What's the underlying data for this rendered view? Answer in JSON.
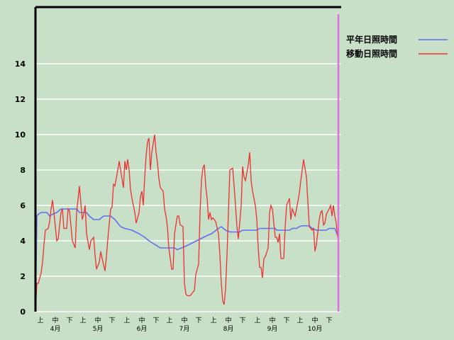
{
  "chart_data": {
    "type": "line",
    "title": "",
    "xlabel": "",
    "ylabel": "",
    "ylim": [
      0,
      17.2
    ],
    "yticks": [
      0,
      2,
      4,
      6,
      8,
      10,
      12,
      14
    ],
    "grid": true,
    "legend_position": "top-right",
    "x_range": [
      "4/1",
      "10/31"
    ],
    "x_period_labels": [
      "上",
      "中",
      "下"
    ],
    "x_month_labels": [
      "4月",
      "5月",
      "6月",
      "7月",
      "8月",
      "9月",
      "10月"
    ],
    "colors": {
      "background": "#c8dfc8",
      "grid": "#eef5ee",
      "marker_line": "#e070e0"
    },
    "series": [
      {
        "name": "平年日照時間",
        "color": "#6070f0",
        "points": [
          [
            "4/1",
            0
          ],
          [
            "4/2",
            5.4
          ],
          [
            "4/3",
            5.5
          ],
          [
            "4/5",
            5.6
          ],
          [
            "4/9",
            5.6
          ],
          [
            "4/11",
            5.4
          ],
          [
            "4/13",
            5.5
          ],
          [
            "4/16",
            5.6
          ],
          [
            "4/19",
            5.8
          ],
          [
            "4/30",
            5.8
          ],
          [
            "5/2",
            5.6
          ],
          [
            "5/7",
            5.6
          ],
          [
            "5/9",
            5.4
          ],
          [
            "5/12",
            5.2
          ],
          [
            "5/16",
            5.2
          ],
          [
            "5/19",
            5.4
          ],
          [
            "5/24",
            5.4
          ],
          [
            "5/27",
            5.2
          ],
          [
            "5/31",
            4.8
          ],
          [
            "6/3",
            4.7
          ],
          [
            "6/8",
            4.6
          ],
          [
            "6/13",
            4.4
          ],
          [
            "6/17",
            4.2
          ],
          [
            "6/20",
            4.0
          ],
          [
            "6/24",
            3.8
          ],
          [
            "6/28",
            3.6
          ],
          [
            "7/8",
            3.6
          ],
          [
            "7/10",
            3.5
          ],
          [
            "7/13",
            3.6
          ],
          [
            "7/16",
            3.7
          ],
          [
            "7/21",
            3.9
          ],
          [
            "7/26",
            4.1
          ],
          [
            "7/31",
            4.3
          ],
          [
            "8/3",
            4.4
          ],
          [
            "8/8",
            4.7
          ],
          [
            "8/10",
            4.8
          ],
          [
            "8/13",
            4.6
          ],
          [
            "8/16",
            4.5
          ],
          [
            "8/23",
            4.5
          ],
          [
            "8/25",
            4.6
          ],
          [
            "9/4",
            4.6
          ],
          [
            "9/6",
            4.7
          ],
          [
            "9/17",
            4.7
          ],
          [
            "9/18",
            4.6
          ],
          [
            "9/27",
            4.6
          ],
          [
            "9/29",
            4.7
          ],
          [
            "10/2",
            4.7
          ],
          [
            "10/4",
            4.8
          ],
          [
            "10/6",
            4.85
          ],
          [
            "10/11",
            4.85
          ],
          [
            "10/13",
            4.7
          ],
          [
            "10/16",
            4.6
          ],
          [
            "10/23",
            4.6
          ],
          [
            "10/25",
            4.7
          ],
          [
            "10/29",
            4.7
          ],
          [
            "10/31",
            4.3
          ]
        ]
      },
      {
        "name": "移動日照時間",
        "color": "#f03030",
        "points": [
          [
            "4/1",
            0
          ],
          [
            "4/2",
            1.6
          ],
          [
            "4/3",
            1.6
          ],
          [
            "4/5",
            2.2
          ],
          [
            "4/6",
            2.8
          ],
          [
            "4/7",
            3.8
          ],
          [
            "4/8",
            4.6
          ],
          [
            "4/10",
            4.7
          ],
          [
            "4/11",
            5.1
          ],
          [
            "4/12",
            5.8
          ],
          [
            "4/13",
            6.3
          ],
          [
            "4/14",
            5.6
          ],
          [
            "4/16",
            4.0
          ],
          [
            "4/17",
            4.1
          ],
          [
            "4/19",
            5.6
          ],
          [
            "4/20",
            5.8
          ],
          [
            "4/21",
            4.7
          ],
          [
            "4/23",
            4.7
          ],
          [
            "4/24",
            5.8
          ],
          [
            "4/25",
            5.7
          ],
          [
            "4/27",
            4.0
          ],
          [
            "4/29",
            3.6
          ],
          [
            "4/30",
            5.6
          ],
          [
            "5/2",
            7.1
          ],
          [
            "5/4",
            5.2
          ],
          [
            "5/5",
            5.5
          ],
          [
            "5/6",
            6.0
          ],
          [
            "5/7",
            4.4
          ],
          [
            "5/9",
            3.5
          ],
          [
            "5/10",
            4.0
          ],
          [
            "5/12",
            4.2
          ],
          [
            "5/13",
            3.2
          ],
          [
            "5/14",
            2.4
          ],
          [
            "5/16",
            2.8
          ],
          [
            "5/17",
            3.4
          ],
          [
            "5/18",
            3.0
          ],
          [
            "5/20",
            2.3
          ],
          [
            "5/21",
            3.1
          ],
          [
            "5/22",
            4.1
          ],
          [
            "5/24",
            5.8
          ],
          [
            "5/25",
            5.9
          ],
          [
            "5/26",
            7.2
          ],
          [
            "5/27",
            7.1
          ],
          [
            "5/29",
            8.0
          ],
          [
            "5/30",
            8.5
          ],
          [
            "5/31",
            8.0
          ],
          [
            "6/2",
            7.0
          ],
          [
            "6/3",
            8.5
          ],
          [
            "6/4",
            8.0
          ],
          [
            "6/5",
            8.6
          ],
          [
            "6/6",
            8.0
          ],
          [
            "6/7",
            6.9
          ],
          [
            "6/8",
            6.4
          ],
          [
            "6/10",
            5.6
          ],
          [
            "6/11",
            5.0
          ],
          [
            "6/13",
            5.6
          ],
          [
            "6/14",
            6.5
          ],
          [
            "6/15",
            6.8
          ],
          [
            "6/16",
            6.0
          ],
          [
            "6/17",
            7.6
          ],
          [
            "6/18",
            8.8
          ],
          [
            "6/19",
            9.6
          ],
          [
            "6/20",
            9.8
          ],
          [
            "6/21",
            8.0
          ],
          [
            "6/22",
            9.0
          ],
          [
            "6/24",
            10.0
          ],
          [
            "6/25",
            9.0
          ],
          [
            "6/26",
            8.4
          ],
          [
            "6/27",
            7.5
          ],
          [
            "6/28",
            7.0
          ],
          [
            "6/30",
            6.8
          ],
          [
            "7/1",
            5.8
          ],
          [
            "7/2",
            5.4
          ],
          [
            "7/3",
            4.8
          ],
          [
            "7/4",
            3.6
          ],
          [
            "7/6",
            2.4
          ],
          [
            "7/7",
            2.4
          ],
          [
            "7/8",
            4.4
          ],
          [
            "7/10",
            5.4
          ],
          [
            "7/11",
            5.4
          ],
          [
            "7/12",
            4.9
          ],
          [
            "7/14",
            4.8
          ],
          [
            "7/15",
            1.6
          ],
          [
            "7/16",
            1.0
          ],
          [
            "7/17",
            0.9
          ],
          [
            "7/19",
            0.9
          ],
          [
            "7/20",
            1.0
          ],
          [
            "7/22",
            1.2
          ],
          [
            "7/23",
            2.1
          ],
          [
            "7/25",
            2.7
          ],
          [
            "7/26",
            5.6
          ],
          [
            "7/27",
            7.4
          ],
          [
            "7/28",
            8.1
          ],
          [
            "7/29",
            8.3
          ],
          [
            "7/30",
            7.1
          ],
          [
            "7/31",
            6.4
          ],
          [
            "8/1",
            5.2
          ],
          [
            "8/2",
            5.6
          ],
          [
            "8/3",
            5.2
          ],
          [
            "8/4",
            5.3
          ],
          [
            "8/6",
            5.1
          ],
          [
            "8/8",
            4.4
          ],
          [
            "8/9",
            3.2
          ],
          [
            "8/10",
            1.6
          ],
          [
            "8/11",
            0.6
          ],
          [
            "8/12",
            0.4
          ],
          [
            "8/13",
            1.3
          ],
          [
            "8/14",
            3.2
          ],
          [
            "8/15",
            5.6
          ],
          [
            "8/16",
            8.0
          ],
          [
            "8/18",
            8.1
          ],
          [
            "8/19",
            7.1
          ],
          [
            "8/20",
            6.0
          ],
          [
            "8/21",
            4.8
          ],
          [
            "8/22",
            4.1
          ],
          [
            "8/24",
            6.0
          ],
          [
            "8/25",
            8.2
          ],
          [
            "8/26",
            7.6
          ],
          [
            "8/27",
            7.4
          ],
          [
            "8/29",
            8.3
          ],
          [
            "8/30",
            9.0
          ],
          [
            "8/31",
            7.4
          ],
          [
            "9/1",
            6.8
          ],
          [
            "9/3",
            6.0
          ],
          [
            "9/4",
            5.2
          ],
          [
            "9/5",
            3.6
          ],
          [
            "9/6",
            2.5
          ],
          [
            "9/7",
            2.5
          ],
          [
            "9/8",
            1.9
          ],
          [
            "9/9",
            3.0
          ],
          [
            "9/10",
            3.1
          ],
          [
            "9/12",
            3.6
          ],
          [
            "9/13",
            5.6
          ],
          [
            "9/14",
            6.0
          ],
          [
            "9/15",
            5.8
          ],
          [
            "9/17",
            4.2
          ],
          [
            "9/18",
            4.2
          ],
          [
            "9/19",
            3.9
          ],
          [
            "9/20",
            4.4
          ],
          [
            "9/21",
            3.0
          ],
          [
            "9/23",
            3.0
          ],
          [
            "9/24",
            4.8
          ],
          [
            "9/25",
            6.0
          ],
          [
            "9/26",
            6.2
          ],
          [
            "9/27",
            6.4
          ],
          [
            "9/28",
            5.2
          ],
          [
            "9/29",
            5.8
          ],
          [
            "10/1",
            5.4
          ],
          [
            "10/2",
            5.8
          ],
          [
            "10/4",
            6.7
          ],
          [
            "10/5",
            7.4
          ],
          [
            "10/6",
            8.0
          ],
          [
            "10/7",
            8.6
          ],
          [
            "10/9",
            7.6
          ],
          [
            "10/10",
            6.2
          ],
          [
            "10/11",
            4.8
          ],
          [
            "10/13",
            4.6
          ],
          [
            "10/14",
            4.7
          ],
          [
            "10/15",
            3.4
          ],
          [
            "10/16",
            3.8
          ],
          [
            "10/18",
            5.2
          ],
          [
            "10/19",
            5.6
          ],
          [
            "10/20",
            5.7
          ],
          [
            "10/21",
            4.9
          ],
          [
            "10/22",
            5.0
          ],
          [
            "10/23",
            5.5
          ],
          [
            "10/25",
            5.8
          ],
          [
            "10/26",
            6.0
          ],
          [
            "10/27",
            5.4
          ],
          [
            "10/28",
            6.0
          ],
          [
            "10/29",
            5.4
          ],
          [
            "10/30",
            5.0
          ],
          [
            "10/31",
            4.2
          ]
        ]
      }
    ]
  }
}
